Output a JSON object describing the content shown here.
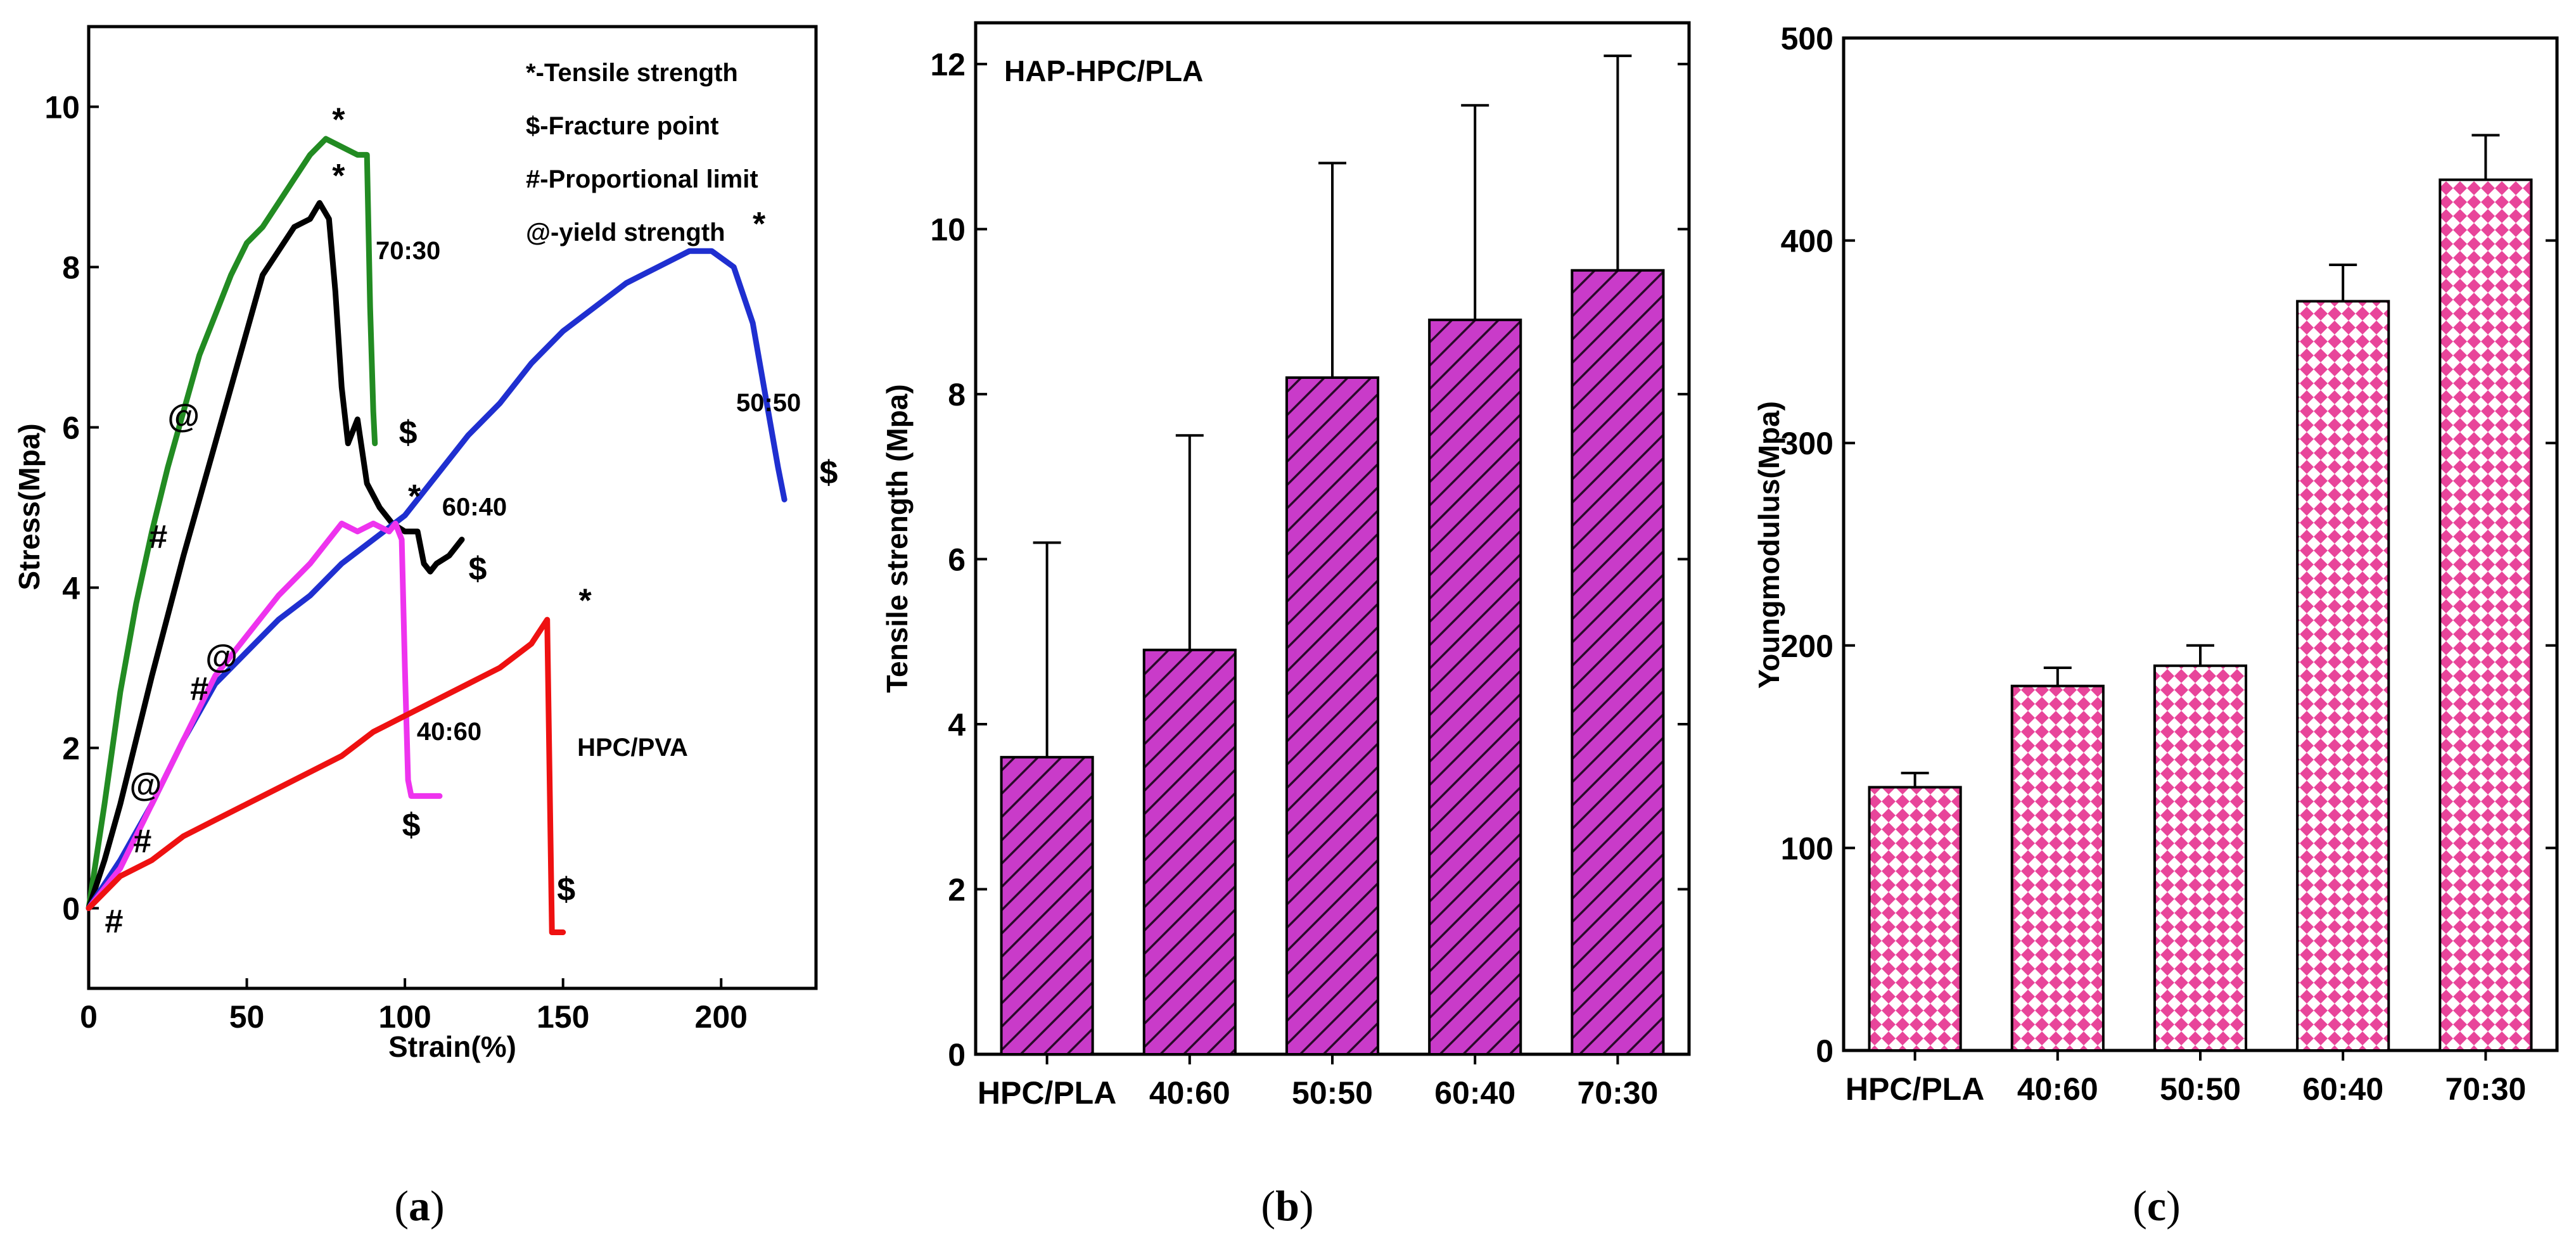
{
  "panel_labels": {
    "a": "(a)",
    "b": "(b)",
    "c": "(c)",
    "a_letter": "a",
    "b_letter": "b",
    "c_letter": "c"
  },
  "colors": {
    "70:30": "#228B22",
    "60:40": "#000000",
    "50:50": "#1f2fd0",
    "40:60": "#ee33ee",
    "HPC/PVA": "#ee1111",
    "bar_b": "#c93bc9",
    "bar_c": "#e8459a"
  },
  "chart_data": [
    {
      "id": "a",
      "type": "line",
      "title": "",
      "xlabel": "Strain(%)",
      "ylabel": "Stress(Mpa)",
      "xlim": [
        0,
        230
      ],
      "ylim": [
        -1,
        11
      ],
      "xticks": [
        0,
        50,
        100,
        150,
        200
      ],
      "yticks": [
        0,
        2,
        4,
        6,
        8,
        10
      ],
      "legend": [
        "*-Tensile strength",
        "$-Fracture point",
        "#-Proportional limit",
        "@-yield strength"
      ],
      "series": [
        {
          "name": "70:30",
          "label": "70:30",
          "x": [
            0,
            5,
            10,
            15,
            20,
            25,
            30,
            35,
            40,
            45,
            50,
            55,
            60,
            65,
            70,
            75,
            80,
            85,
            88,
            89,
            90,
            90.5
          ],
          "y": [
            0,
            1.3,
            2.7,
            3.8,
            4.7,
            5.5,
            6.2,
            6.9,
            7.4,
            7.9,
            8.3,
            8.5,
            8.8,
            9.1,
            9.4,
            9.6,
            9.5,
            9.4,
            9.4,
            7.5,
            6.2,
            5.8
          ]
        },
        {
          "name": "60:40",
          "label": "60:40",
          "x": [
            0,
            5,
            10,
            20,
            30,
            40,
            50,
            55,
            60,
            65,
            70,
            73,
            76,
            78,
            80,
            82,
            85,
            88,
            92,
            96,
            100,
            104,
            106,
            108,
            110,
            114,
            118
          ],
          "y": [
            0,
            0.6,
            1.3,
            2.9,
            4.4,
            5.8,
            7.2,
            7.9,
            8.2,
            8.5,
            8.6,
            8.8,
            8.6,
            7.7,
            6.5,
            5.8,
            6.1,
            5.3,
            5.0,
            4.8,
            4.7,
            4.7,
            4.3,
            4.2,
            4.3,
            4.4,
            4.6
          ]
        },
        {
          "name": "50:50",
          "label": "50:50",
          "x": [
            0,
            10,
            20,
            30,
            40,
            50,
            60,
            70,
            80,
            90,
            100,
            110,
            120,
            130,
            140,
            150,
            160,
            170,
            180,
            190,
            197,
            204,
            210,
            214,
            218,
            220
          ],
          "y": [
            0,
            0.6,
            1.3,
            2.1,
            2.8,
            3.2,
            3.6,
            3.9,
            4.3,
            4.6,
            4.9,
            5.4,
            5.9,
            6.3,
            6.8,
            7.2,
            7.5,
            7.8,
            8.0,
            8.2,
            8.2,
            8.0,
            7.3,
            6.4,
            5.5,
            5.1
          ]
        },
        {
          "name": "40:60",
          "label": "40:60",
          "x": [
            0,
            10,
            20,
            30,
            40,
            50,
            60,
            70,
            80,
            85,
            90,
            95,
            97,
            99,
            100,
            101,
            102,
            104,
            108,
            111
          ],
          "y": [
            0,
            0.5,
            1.3,
            2.1,
            2.9,
            3.4,
            3.9,
            4.3,
            4.8,
            4.7,
            4.8,
            4.7,
            4.8,
            4.6,
            3.0,
            1.6,
            1.4,
            1.4,
            1.4,
            1.4
          ]
        },
        {
          "name": "HPC/PVA",
          "label": "HPC/PVA",
          "x": [
            0,
            10,
            20,
            30,
            40,
            50,
            60,
            70,
            80,
            90,
            100,
            110,
            120,
            130,
            140,
            145,
            146,
            146.5,
            148,
            150
          ],
          "y": [
            0,
            0.4,
            0.6,
            0.9,
            1.1,
            1.3,
            1.5,
            1.7,
            1.9,
            2.2,
            2.4,
            2.6,
            2.8,
            3.0,
            3.3,
            3.6,
            1.0,
            -0.3,
            -0.3,
            -0.3
          ]
        }
      ],
      "markers": [
        {
          "symbol": "*",
          "x": 79,
          "y": 9.7
        },
        {
          "symbol": "*",
          "x": 79,
          "y": 9.0
        },
        {
          "symbol": "*",
          "x": 212,
          "y": 8.4
        },
        {
          "symbol": "*",
          "x": 103,
          "y": 5.0
        },
        {
          "symbol": "*",
          "x": 157,
          "y": 3.7
        },
        {
          "symbol": "$",
          "x": 101,
          "y": 5.8
        },
        {
          "symbol": "$",
          "x": 234,
          "y": 5.3
        },
        {
          "symbol": "$",
          "x": 123,
          "y": 4.1
        },
        {
          "symbol": "$",
          "x": 102,
          "y": 0.9
        },
        {
          "symbol": "$",
          "x": 151,
          "y": 0.1
        },
        {
          "symbol": "#",
          "x": 22,
          "y": 4.5
        },
        {
          "symbol": "#",
          "x": 35,
          "y": 2.6
        },
        {
          "symbol": "#",
          "x": 17,
          "y": 0.7
        },
        {
          "symbol": "#",
          "x": 8,
          "y": -0.3
        },
        {
          "symbol": "@",
          "x": 30,
          "y": 6.0
        },
        {
          "symbol": "@",
          "x": 42,
          "y": 3.0
        },
        {
          "symbol": "@",
          "x": 18,
          "y": 1.4
        }
      ]
    },
    {
      "id": "b",
      "type": "bar",
      "title": "HAP-HPC/PLA",
      "xlabel": "",
      "ylabel": "Tensile strength (Mpa)",
      "ylim": [
        0,
        12.5
      ],
      "yticks": [
        0,
        2,
        4,
        6,
        8,
        10,
        12
      ],
      "categories": [
        "HPC/PLA",
        "40:60",
        "50:50",
        "60:40",
        "70:30"
      ],
      "values": [
        3.6,
        4.9,
        8.2,
        8.9,
        9.5
      ],
      "errors": [
        2.6,
        2.6,
        2.6,
        2.6,
        2.6
      ]
    },
    {
      "id": "c",
      "type": "bar",
      "title": "",
      "xlabel": "",
      "ylabel": "Youngmodulus(Mpa)",
      "ylim": [
        0,
        500
      ],
      "yticks": [
        0,
        100,
        200,
        300,
        400,
        500
      ],
      "categories": [
        "HPC/PLA",
        "40:60",
        "50:50",
        "60:40",
        "70:30"
      ],
      "values": [
        130,
        180,
        190,
        370,
        430
      ],
      "errors": [
        7,
        9,
        10,
        18,
        22
      ]
    }
  ]
}
